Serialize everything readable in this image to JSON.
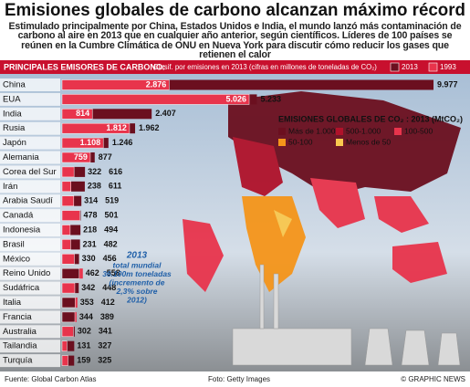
{
  "chart_data": {
    "type": "bar",
    "title": "Emisiones globales de carbono alcanzan máximo récord",
    "subtitle": "Estimulado principalmente por China, Estados Unidos e India, el mundo lanzó más contaminación de carbono al aire en 2013 que en cualquier año anterior, según científicos. Líderes de 100 países se reúnen en la Cumbre Climática de ONU en Nueva York para discutir cómo reducir los gases que retienen el calor",
    "header": "PRINCIPALES EMISORES DE CARBONO:",
    "header_note": "Clasif. por emisiones en 2013 (cifras en millones de toneladas de CO₂)",
    "categories": [
      "China",
      "EUA",
      "India",
      "Rusia",
      "Japón",
      "Alemania",
      "Corea del Sur",
      "Irán",
      "Arabia Saudí",
      "Canadá",
      "Indonesia",
      "Brasil",
      "México",
      "Reino Unido",
      "Sudáfrica",
      "Italia",
      "Francia",
      "Australia",
      "Tailandia",
      "Turquía"
    ],
    "series": [
      {
        "name": "2013",
        "color": "#6b0f1f",
        "values": [
          9977,
          5233,
          2407,
          1962,
          1246,
          877,
          616,
          611,
          519,
          501,
          494,
          482,
          456,
          462,
          448,
          353,
          344,
          341,
          327,
          325
        ],
        "value_labels": [
          "9.977",
          "5.233",
          "2.407",
          "1.962",
          "1.246",
          "877",
          "616",
          "611",
          "519",
          "501",
          "494",
          "482",
          "456",
          "462",
          "448",
          "353",
          "344",
          "341",
          "327",
          "325"
        ]
      },
      {
        "name": "1993",
        "color": "#e8344c",
        "values": [
          2876,
          5026,
          814,
          1812,
          1108,
          759,
          322,
          238,
          314,
          478,
          218,
          231,
          330,
          558,
          342,
          412,
          389,
          302,
          131,
          159
        ],
        "value_labels": [
          "2.876",
          "5.026",
          "814",
          "1.812",
          "1.108",
          "759",
          "322",
          "238",
          "314",
          "478",
          "218",
          "231",
          "330",
          "558",
          "342",
          "412",
          "389",
          "302",
          "131",
          "159"
        ]
      }
    ],
    "map_legend": {
      "title": "EMISIONES GLOBALES DE CO₂ : 2013 (MtCO₂)",
      "items": [
        {
          "label": "Más de 1.000",
          "color": "#6b0f1f"
        },
        {
          "label": "500-1.000",
          "color": "#b0122a"
        },
        {
          "label": "100-500",
          "color": "#e8344c"
        },
        {
          "label": "50-100",
          "color": "#f5951a"
        },
        {
          "label": "Menos de 50",
          "color": "#f9c84f"
        }
      ]
    },
    "annotation": {
      "year": "2013",
      "lines": [
        "total mundial",
        "36.100m toneladas",
        "(incremento de",
        "2,3% sobre",
        "2012)"
      ]
    },
    "source": "Fuente: Global Carbon Atlas",
    "photo_credit": "Foto: Getty Images",
    "credit": "© GRAPHIC NEWS"
  }
}
